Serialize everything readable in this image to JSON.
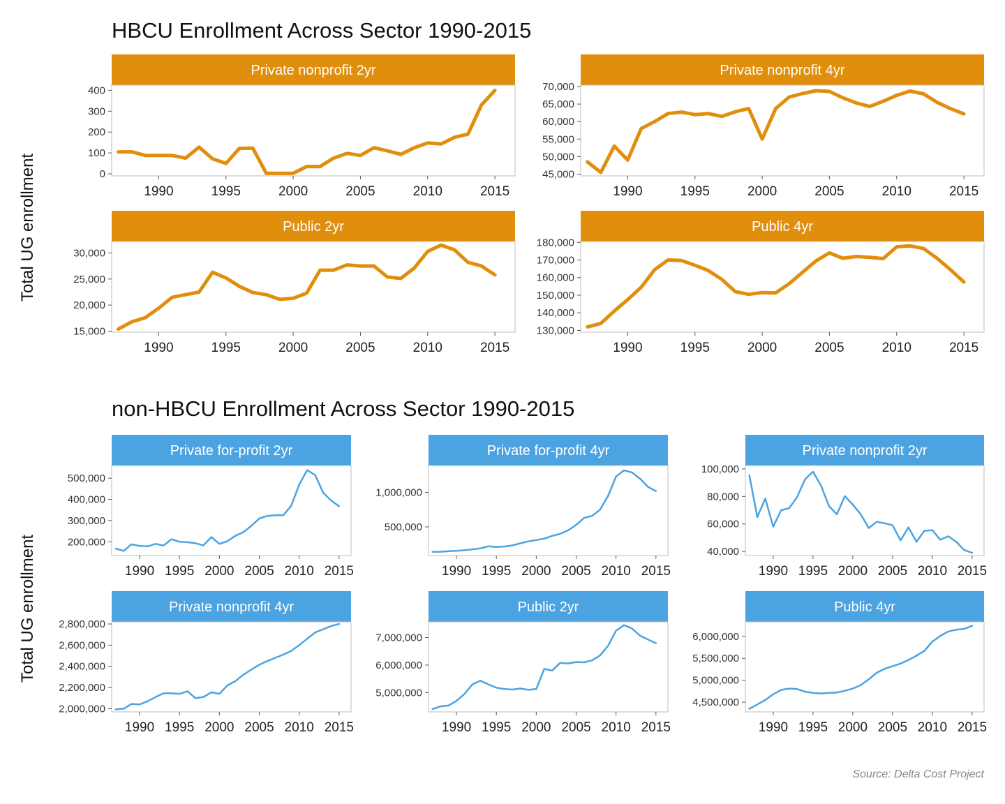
{
  "source": "Source: Delta Cost Project",
  "colors": {
    "hbcu": "#E08E0B",
    "non_hbcu": "#4BA3E2",
    "strip_text": "#ffffff",
    "panel_border": "#bdbdbd"
  },
  "sections": [
    {
      "title": "HBCU Enrollment Across Sector 1990-2015",
      "ylabel": "Total UG enrollment",
      "color": "#E08E0B"
    },
    {
      "title": "non-HBCU Enrollment Across Sector 1990-2015",
      "ylabel": "Total UG enrollment",
      "color": "#4BA3E2"
    }
  ],
  "chart_data": [
    {
      "type": "line",
      "group": "HBCU",
      "title": "Private nonprofit 2yr",
      "x": [
        1987,
        1988,
        1989,
        1990,
        1991,
        1992,
        1993,
        1994,
        1995,
        1996,
        1997,
        1998,
        1999,
        2000,
        2001,
        2002,
        2003,
        2004,
        2005,
        2006,
        2007,
        2008,
        2009,
        2010,
        2011,
        2012,
        2013,
        2014,
        2015
      ],
      "y": [
        105,
        105,
        88,
        88,
        88,
        75,
        128,
        72,
        50,
        122,
        123,
        2,
        2,
        2,
        35,
        35,
        75,
        98,
        88,
        125,
        110,
        93,
        125,
        148,
        143,
        175,
        190,
        330,
        400
      ],
      "xlim": [
        1986.5,
        2016.5
      ],
      "ylim": [
        -10,
        425
      ],
      "yticks": [
        0,
        100,
        200,
        300,
        400
      ],
      "ytick_labels": [
        "0",
        "100",
        "200",
        "300",
        "400"
      ],
      "xticks": [
        1990,
        1995,
        2000,
        2005,
        2010,
        2015
      ],
      "xtick_labels": [
        "1990",
        "1995",
        "2000",
        "2005",
        "2010",
        "2015"
      ]
    },
    {
      "type": "line",
      "group": "HBCU",
      "title": "Private nonprofit 4yr",
      "x": [
        1987,
        1988,
        1989,
        1990,
        1991,
        1992,
        1993,
        1994,
        1995,
        1996,
        1997,
        1998,
        1999,
        2000,
        2001,
        2002,
        2003,
        2004,
        2005,
        2006,
        2007,
        2008,
        2009,
        2010,
        2011,
        2012,
        2013,
        2014,
        2015
      ],
      "y": [
        48500,
        45500,
        53000,
        49000,
        58000,
        60000,
        62300,
        62700,
        62000,
        62300,
        61500,
        62800,
        63700,
        55000,
        63700,
        67000,
        68000,
        68800,
        68600,
        66800,
        65300,
        64300,
        65800,
        67500,
        68700,
        67900,
        65500,
        63700,
        62200
      ],
      "xlim": [
        1986.5,
        2016.5
      ],
      "ylim": [
        44500,
        70400
      ],
      "yticks": [
        45000,
        50000,
        55000,
        60000,
        65000,
        70000
      ],
      "ytick_labels": [
        "45,000",
        "50,000",
        "55,000",
        "60,000",
        "65,000",
        "70,000"
      ],
      "xticks": [
        1990,
        1995,
        2000,
        2005,
        2010,
        2015
      ],
      "xtick_labels": [
        "1990",
        "1995",
        "2000",
        "2005",
        "2010",
        "2015"
      ]
    },
    {
      "type": "line",
      "group": "HBCU",
      "title": "Public 2yr",
      "x": [
        1987,
        1988,
        1989,
        1990,
        1991,
        1992,
        1993,
        1994,
        1995,
        1996,
        1997,
        1998,
        1999,
        2000,
        2001,
        2002,
        2003,
        2004,
        2005,
        2006,
        2007,
        2008,
        2009,
        2010,
        2011,
        2012,
        2013,
        2014,
        2015
      ],
      "y": [
        15400,
        16800,
        17600,
        19400,
        21500,
        22000,
        22500,
        26300,
        25200,
        23600,
        22400,
        22000,
        21100,
        21300,
        22300,
        26700,
        26700,
        27700,
        27500,
        27500,
        25400,
        25100,
        27100,
        30300,
        31500,
        30600,
        28200,
        27500,
        25800
      ],
      "xlim": [
        1986.5,
        2016.5
      ],
      "ylim": [
        14800,
        32200
      ],
      "yticks": [
        15000,
        20000,
        25000,
        30000
      ],
      "ytick_labels": [
        "15,000",
        "20,000",
        "25,000",
        "30,000"
      ],
      "xticks": [
        1990,
        1995,
        2000,
        2005,
        2010,
        2015
      ],
      "xtick_labels": [
        "1990",
        "1995",
        "2000",
        "2005",
        "2010",
        "2015"
      ]
    },
    {
      "type": "line",
      "group": "HBCU",
      "title": "Public 4yr",
      "x": [
        1987,
        1988,
        1989,
        1990,
        1991,
        1992,
        1993,
        1994,
        1995,
        1996,
        1997,
        1998,
        1999,
        2000,
        2001,
        2002,
        2003,
        2004,
        2005,
        2006,
        2007,
        2008,
        2009,
        2010,
        2011,
        2012,
        2013,
        2014,
        2015
      ],
      "y": [
        132000,
        134000,
        141000,
        147500,
        154500,
        164500,
        170000,
        169700,
        167000,
        164000,
        159000,
        152000,
        150500,
        151500,
        151300,
        156500,
        163000,
        169500,
        174000,
        171000,
        172000,
        171500,
        170800,
        177500,
        178000,
        176500,
        171000,
        164500,
        157500
      ],
      "xlim": [
        1986.5,
        2016.5
      ],
      "ylim": [
        129000,
        180500
      ],
      "yticks": [
        130000,
        140000,
        150000,
        160000,
        170000,
        180000
      ],
      "ytick_labels": [
        "130,000",
        "140,000",
        "150,000",
        "160,000",
        "170,000",
        "180,000"
      ],
      "xticks": [
        1990,
        1995,
        2000,
        2005,
        2010,
        2015
      ],
      "xtick_labels": [
        "1990",
        "1995",
        "2000",
        "2005",
        "2010",
        "2015"
      ]
    },
    {
      "type": "line",
      "group": "non-HBCU",
      "title": "Private for-profit 2yr",
      "x": [
        1987,
        1988,
        1989,
        1990,
        1991,
        1992,
        1993,
        1994,
        1995,
        1996,
        1997,
        1998,
        1999,
        2000,
        2001,
        2002,
        2003,
        2004,
        2005,
        2006,
        2007,
        2008,
        2009,
        2010,
        2011,
        2012,
        2013,
        2014,
        2015
      ],
      "y": [
        168000,
        157000,
        188000,
        180000,
        178000,
        190000,
        182000,
        212000,
        200000,
        198000,
        193000,
        183000,
        222000,
        190000,
        203000,
        228000,
        245000,
        275000,
        310000,
        322000,
        325000,
        325000,
        370000,
        470000,
        538000,
        515000,
        432000,
        395000,
        368000
      ],
      "xlim": [
        1986.5,
        2016.5
      ],
      "ylim": [
        135000,
        560000
      ],
      "yticks": [
        200000,
        300000,
        400000,
        500000
      ],
      "ytick_labels": [
        "200,000",
        "300,000",
        "400,000",
        "500,000"
      ],
      "xticks": [
        1990,
        1995,
        2000,
        2005,
        2010,
        2015
      ],
      "xtick_labels": [
        "1990",
        "1995",
        "2000",
        "2005",
        "2010",
        "2015"
      ]
    },
    {
      "type": "line",
      "group": "non-HBCU",
      "title": "Private for-profit 4yr",
      "x": [
        1987,
        1988,
        1989,
        1990,
        1991,
        1992,
        1993,
        1994,
        1995,
        1996,
        1997,
        1998,
        1999,
        2000,
        2001,
        2002,
        2003,
        2004,
        2005,
        2006,
        2007,
        2008,
        2009,
        2010,
        2011,
        2012,
        2013,
        2014,
        2015
      ],
      "y": [
        140000,
        140000,
        148000,
        153000,
        162000,
        175000,
        188000,
        220000,
        208000,
        215000,
        232000,
        262000,
        290000,
        310000,
        330000,
        370000,
        400000,
        450000,
        530000,
        630000,
        660000,
        750000,
        950000,
        1230000,
        1320000,
        1290000,
        1200000,
        1080000,
        1020000
      ],
      "xlim": [
        1986.5,
        2016.5
      ],
      "ylim": [
        85000,
        1390000
      ],
      "yticks": [
        500000,
        1000000
      ],
      "ytick_labels": [
        "500,000",
        "1,000,000"
      ],
      "xticks": [
        1990,
        1995,
        2000,
        2005,
        2010,
        2015
      ],
      "xtick_labels": [
        "1990",
        "1995",
        "2000",
        "2005",
        "2010",
        "2015"
      ]
    },
    {
      "type": "line",
      "group": "non-HBCU",
      "title": "Private nonprofit 2yr",
      "x": [
        1987,
        1988,
        1989,
        1990,
        1991,
        1992,
        1993,
        1994,
        1995,
        1996,
        1997,
        1998,
        1999,
        2000,
        2001,
        2002,
        2003,
        2004,
        2005,
        2006,
        2007,
        2008,
        2009,
        2010,
        2011,
        2012,
        2013,
        2014,
        2015
      ],
      "y": [
        95500,
        65000,
        78500,
        58000,
        70000,
        71500,
        79500,
        92500,
        98000,
        88000,
        73000,
        67000,
        80200,
        74000,
        67000,
        57000,
        61500,
        60500,
        59000,
        48000,
        57500,
        47000,
        55000,
        55500,
        48500,
        51000,
        47000,
        41000,
        39000
      ],
      "xlim": [
        1986.5,
        2016.5
      ],
      "ylim": [
        37000,
        102500
      ],
      "yticks": [
        40000,
        60000,
        80000,
        100000
      ],
      "ytick_labels": [
        "40,000",
        "60,000",
        "80,000",
        "100,000"
      ],
      "xticks": [
        1990,
        1995,
        2000,
        2005,
        2010,
        2015
      ],
      "xtick_labels": [
        "1990",
        "1995",
        "2000",
        "2005",
        "2010",
        "2015"
      ]
    },
    {
      "type": "line",
      "group": "non-HBCU",
      "title": "Private nonprofit 4yr",
      "x": [
        1987,
        1988,
        1989,
        1990,
        1991,
        1992,
        1993,
        1994,
        1995,
        1996,
        1997,
        1998,
        1999,
        2000,
        2001,
        2002,
        2003,
        2004,
        2005,
        2006,
        2007,
        2008,
        2009,
        2010,
        2011,
        2012,
        2013,
        2014,
        2015
      ],
      "y": [
        1993000,
        2000000,
        2045000,
        2040000,
        2070000,
        2110000,
        2145000,
        2145000,
        2140000,
        2165000,
        2100000,
        2110000,
        2155000,
        2140000,
        2220000,
        2260000,
        2320000,
        2370000,
        2415000,
        2450000,
        2480000,
        2510000,
        2545000,
        2600000,
        2660000,
        2720000,
        2750000,
        2780000,
        2800000
      ],
      "xlim": [
        1986.5,
        2016.5
      ],
      "ylim": [
        1970000,
        2820000
      ],
      "yticks": [
        2000000,
        2200000,
        2400000,
        2600000,
        2800000
      ],
      "ytick_labels": [
        "2,000,000",
        "2,200,000",
        "2,400,000",
        "2,600,000",
        "2,800,000"
      ],
      "xticks": [
        1990,
        1995,
        2000,
        2005,
        2010,
        2015
      ],
      "xtick_labels": [
        "1990",
        "1995",
        "2000",
        "2005",
        "2010",
        "2015"
      ]
    },
    {
      "type": "line",
      "group": "non-HBCU",
      "title": "Public 2yr",
      "x": [
        1987,
        1988,
        1989,
        1990,
        1991,
        1992,
        1993,
        1994,
        1995,
        1996,
        1997,
        1998,
        1999,
        2000,
        2001,
        2002,
        2003,
        2004,
        2005,
        2006,
        2007,
        2008,
        2009,
        2010,
        2011,
        2012,
        2013,
        2014,
        2015
      ],
      "y": [
        4400000,
        4500000,
        4530000,
        4700000,
        4950000,
        5300000,
        5430000,
        5300000,
        5180000,
        5130000,
        5110000,
        5150000,
        5100000,
        5130000,
        5860000,
        5800000,
        6080000,
        6060000,
        6110000,
        6100000,
        6170000,
        6350000,
        6700000,
        7250000,
        7450000,
        7330000,
        7070000,
        6930000,
        6790000
      ],
      "xlim": [
        1986.5,
        2016.5
      ],
      "ylim": [
        4300000,
        7570000
      ],
      "yticks": [
        5000000,
        6000000,
        7000000
      ],
      "ytick_labels": [
        "5,000,000",
        "6,000,000",
        "7,000,000"
      ],
      "xticks": [
        1990,
        1995,
        2000,
        2005,
        2010,
        2015
      ],
      "xtick_labels": [
        "1990",
        "1995",
        "2000",
        "2005",
        "2010",
        "2015"
      ]
    },
    {
      "type": "line",
      "group": "non-HBCU",
      "title": "Public 4yr",
      "x": [
        1987,
        1988,
        1989,
        1990,
        1991,
        1992,
        1993,
        1994,
        1995,
        1996,
        1997,
        1998,
        1999,
        2000,
        2001,
        2002,
        2003,
        2004,
        2005,
        2006,
        2007,
        2008,
        2009,
        2010,
        2011,
        2012,
        2013,
        2014,
        2015
      ],
      "y": [
        4350000,
        4450000,
        4550000,
        4680000,
        4780000,
        4810000,
        4800000,
        4740000,
        4710000,
        4700000,
        4710000,
        4720000,
        4760000,
        4810000,
        4890000,
        5020000,
        5170000,
        5260000,
        5320000,
        5380000,
        5460000,
        5560000,
        5670000,
        5880000,
        6010000,
        6110000,
        6150000,
        6170000,
        6240000
      ],
      "xlim": [
        1986.5,
        2016.5
      ],
      "ylim": [
        4280000,
        6330000
      ],
      "yticks": [
        4500000,
        5000000,
        5500000,
        6000000
      ],
      "ytick_labels": [
        "4,500,000",
        "5,000,000",
        "5,500,000",
        "6,000,000"
      ],
      "xticks": [
        1990,
        1995,
        2000,
        2005,
        2010,
        2015
      ],
      "xtick_labels": [
        "1990",
        "1995",
        "2000",
        "2005",
        "2010",
        "2015"
      ]
    }
  ]
}
